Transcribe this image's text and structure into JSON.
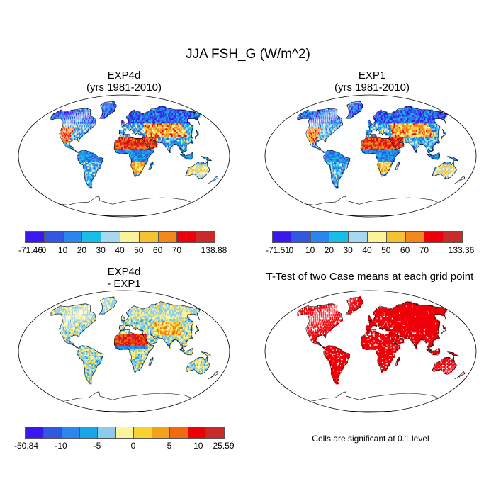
{
  "figure": {
    "title": "JJA FSH_G (W/m^2)"
  },
  "panels": [
    {
      "id": "exp4d",
      "title_line1": "EXP4d",
      "title_line2": "(yrs 1981-2010)",
      "scheme": "abs"
    },
    {
      "id": "exp1",
      "title_line1": "EXP1",
      "title_line2": "(yrs 1981-2010)",
      "scheme": "abs"
    },
    {
      "id": "diff",
      "title_line1": "EXP4d",
      "title_line2": "- EXP1",
      "scheme": "diff"
    },
    {
      "id": "ttest",
      "title_line1": "T-Test of two Case means at each grid point",
      "title_line2": "",
      "scheme": "sig"
    }
  ],
  "colorbars": {
    "exp4d": {
      "colors": [
        "#3a19f0",
        "#3257e1",
        "#2b87ee",
        "#18bde8",
        "#a6d8f0",
        "#fbf49a",
        "#f7c231",
        "#f2881a",
        "#ee0009",
        "#c92b2b"
      ],
      "labels": [
        "-71.46",
        "0",
        "10",
        "20",
        "30",
        "40",
        "50",
        "60",
        "70",
        "138.88"
      ]
    },
    "exp1": {
      "colors": [
        "#3a19f0",
        "#3257e1",
        "#2b87ee",
        "#18bde8",
        "#a6d8f0",
        "#fbf49a",
        "#f7c231",
        "#f2881a",
        "#ee0009",
        "#c92b2b"
      ],
      "labels": [
        "-71.51",
        "0",
        "10",
        "20",
        "30",
        "40",
        "50",
        "60",
        "70",
        "133.36"
      ]
    },
    "diff": {
      "colors": [
        "#3a19f0",
        "#3257e1",
        "#2b87ee",
        "#18a6e8",
        "#8ccbee",
        "#fbf49a",
        "#f7d231",
        "#f2a21a",
        "#f06a10",
        "#ee0009",
        "#c92b2b"
      ],
      "labels": [
        "-50.84",
        "-10",
        "-5",
        "0",
        "5",
        "10",
        "25.59"
      ]
    }
  },
  "significance_note": "Cells are significant at 0.1 level",
  "colors": {
    "significant": "#ee0009",
    "ocean": "#ffffff",
    "outline": "#000000"
  }
}
